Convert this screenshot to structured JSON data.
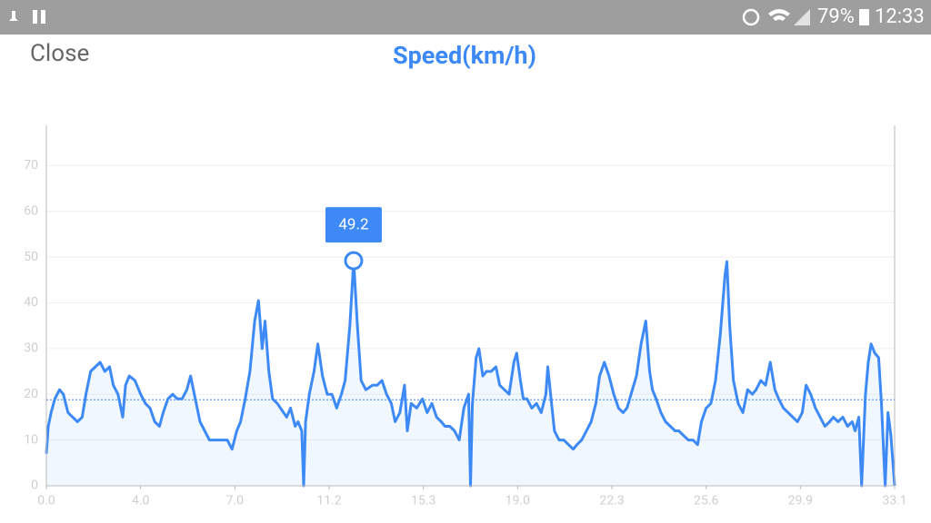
{
  "status_bar": {
    "battery": "79%",
    "time": "12:33"
  },
  "close": "Close",
  "chart_data": {
    "type": "line",
    "title": "Speed(km/h)",
    "x": [
      0,
      0.02,
      0.05,
      0.09,
      0.14,
      0.18,
      0.23,
      0.28,
      0.33,
      0.38,
      0.42,
      0.47,
      0.52,
      0.57,
      0.62,
      0.67,
      0.71,
      0.76,
      0.81,
      0.84,
      0.88,
      0.94,
      1.0,
      1.05,
      1.1,
      1.15,
      1.2,
      1.24,
      1.29,
      1.34,
      1.39,
      1.44,
      1.49,
      1.53,
      1.58,
      1.63,
      1.68,
      1.73,
      1.82,
      1.92,
      1.97,
      2.02,
      2.06,
      2.11,
      2.16,
      2.21,
      2.25,
      2.29,
      2.32,
      2.36,
      2.4,
      2.45,
      2.55,
      2.59,
      2.64,
      2.67,
      2.71,
      2.73,
      2.75,
      2.79,
      2.84,
      2.88,
      2.93,
      2.98,
      3.03,
      3.08,
      3.13,
      3.17,
      3.22,
      3.26,
      3.3,
      3.34,
      3.39,
      3.46,
      3.51,
      3.56,
      3.61,
      3.66,
      3.7,
      3.75,
      3.8,
      3.83,
      3.87,
      3.93,
      3.99,
      4.04,
      4.09,
      4.14,
      4.19,
      4.23,
      4.28,
      4.33,
      4.38,
      4.43,
      4.48,
      4.5,
      4.52,
      4.56,
      4.59,
      4.63,
      4.67,
      4.72,
      4.77,
      4.81,
      4.86,
      4.91,
      4.96,
      4.99,
      5.03,
      5.06,
      5.1,
      5.15,
      5.2,
      5.25,
      5.3,
      5.32,
      5.35,
      5.39,
      5.44,
      5.49,
      5.54,
      5.59,
      5.63,
      5.68,
      5.73,
      5.78,
      5.83,
      5.87,
      5.92,
      5.97,
      6.02,
      6.07,
      6.12,
      6.16,
      6.26,
      6.31,
      6.36,
      6.4,
      6.43,
      6.47,
      6.52,
      6.57,
      6.62,
      6.67,
      6.71,
      6.76,
      6.81,
      6.86,
      6.91,
      6.95,
      7.0,
      7.05,
      7.1,
      7.15,
      7.2,
      7.22,
      7.25,
      7.29,
      7.34,
      7.39,
      7.44,
      7.49,
      7.53,
      7.58,
      7.63,
      7.68,
      7.73,
      7.77,
      7.82,
      7.87,
      7.92,
      7.97,
      8.02,
      8.06,
      8.11,
      8.16,
      8.21,
      8.26,
      8.31,
      8.35,
      8.4,
      8.45,
      8.5,
      8.55,
      8.58,
      8.62,
      8.65,
      8.69,
      8.72,
      8.75,
      8.79,
      8.83,
      8.86,
      8.9,
      8.93,
      8.96,
      9.0
    ],
    "series": [
      {
        "color": "#3d8af7",
        "values": [
          7,
          13,
          16,
          19,
          21,
          20,
          16,
          15,
          14,
          15,
          20,
          25,
          26,
          27,
          25,
          26,
          22,
          20,
          15,
          22,
          24,
          23,
          20,
          18,
          17,
          14,
          13,
          16,
          19,
          20,
          19,
          19,
          21,
          24,
          19,
          14,
          12,
          10,
          10,
          10,
          8,
          12,
          14,
          19,
          25,
          36,
          40.5,
          30,
          36,
          25,
          19,
          18,
          15,
          17,
          13,
          14,
          12,
          0,
          14,
          20,
          25,
          31,
          24,
          20,
          20,
          17,
          20,
          23,
          35,
          49.2,
          35,
          23,
          21,
          22,
          22,
          23,
          20,
          18,
          14,
          16,
          22,
          12,
          18,
          17,
          19,
          16,
          18,
          15,
          14,
          13,
          13,
          12,
          10,
          17,
          20,
          0,
          18,
          28,
          30,
          24,
          25,
          25,
          26,
          22,
          21,
          20,
          27,
          29,
          23,
          19,
          19,
          17,
          18,
          16,
          20,
          26,
          20,
          12,
          10,
          10,
          9,
          8,
          9,
          10,
          12,
          14,
          18,
          24,
          27,
          24,
          20,
          17,
          16,
          17,
          24,
          31,
          36,
          25,
          21,
          19,
          16,
          14,
          13,
          12,
          12,
          11,
          10,
          10,
          9,
          14,
          17,
          18,
          23,
          33,
          46,
          49,
          35,
          23,
          18,
          16,
          21,
          20,
          21,
          23,
          22,
          27,
          21,
          19,
          17,
          16,
          15,
          14,
          16,
          22,
          20,
          17,
          15,
          13,
          14,
          15,
          14,
          15,
          13,
          14,
          12,
          15,
          0,
          20,
          27,
          31,
          29,
          28,
          18,
          0,
          16,
          11,
          0
        ]
      }
    ],
    "highlight": {
      "x": 3.26,
      "value": 49.2
    },
    "average": 18.8,
    "xlim": [
      0,
      9
    ],
    "xticks": [
      {
        "value": 0,
        "label": "0.0"
      },
      {
        "value": 1,
        "label": "4.0"
      },
      {
        "value": 2,
        "label": "7.0"
      },
      {
        "value": 3,
        "label": "11.2"
      },
      {
        "value": 4,
        "label": "15.3"
      },
      {
        "value": 5,
        "label": "19.0"
      },
      {
        "value": 6,
        "label": "22.3"
      },
      {
        "value": 7,
        "label": "25.6"
      },
      {
        "value": 8,
        "label": "29.9"
      },
      {
        "value": 9,
        "label": "33.1"
      }
    ],
    "ylim": [
      0,
      78.8
    ],
    "yticks": [
      0,
      10,
      20,
      30,
      40,
      50,
      60,
      70
    ],
    "grid": true
  }
}
